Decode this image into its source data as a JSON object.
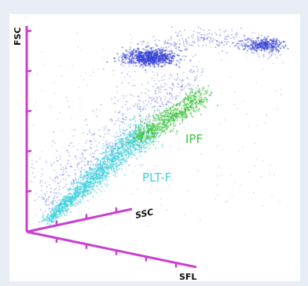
{
  "chart_data": {
    "type": "scatter",
    "projection": "3d",
    "axes": {
      "x": "SSC",
      "y": "FSC",
      "z": "SFL"
    },
    "series": [
      {
        "name": "",
        "color": "#3a46d6",
        "note_population": "platelets-scatter"
      },
      {
        "name": "PLT-F",
        "color": "#3fd0dc"
      },
      {
        "name": "IPF",
        "color": "#3cc23c"
      }
    ],
    "annotations": [
      {
        "text": "IPF",
        "color": "#3cc23c"
      },
      {
        "text": "PLT-F",
        "color": "#3fd0dc"
      }
    ],
    "axis_color": "#c940cf",
    "ticks": {
      "y": 5,
      "x": 3,
      "z": 5
    }
  }
}
